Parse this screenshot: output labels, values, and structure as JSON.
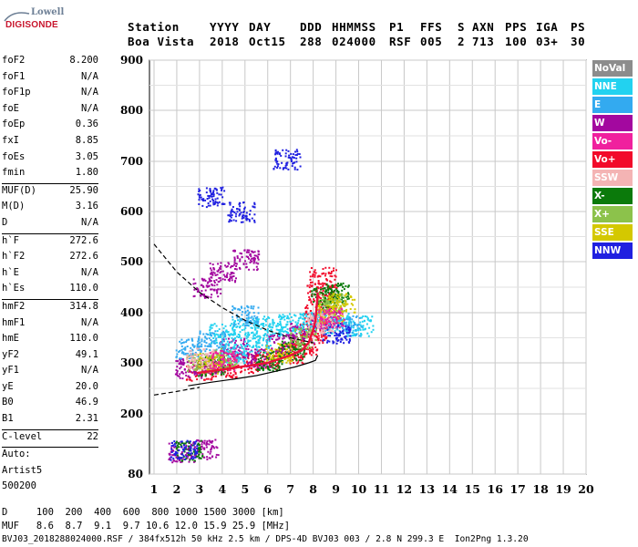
{
  "logo": {
    "line1": "Lowell",
    "line2": "DIGISONDE"
  },
  "header": {
    "columns": [
      "Station",
      "YYYY",
      "DAY",
      "DDD",
      "HHMMSS",
      "P1",
      "FFS",
      "S",
      "AXN",
      "PPS",
      "IGA",
      "PS"
    ],
    "values": [
      "Boa Vista",
      "2018",
      "Oct15",
      "288",
      "024000",
      "RSF",
      "005",
      "2",
      "713",
      "100",
      "03+",
      "30"
    ]
  },
  "params": {
    "group1": [
      {
        "k": "foF2",
        "v": "8.200"
      },
      {
        "k": "foF1",
        "v": "N/A"
      },
      {
        "k": "foF1p",
        "v": "N/A"
      },
      {
        "k": "foE",
        "v": "N/A"
      },
      {
        "k": "foEp",
        "v": "0.36"
      },
      {
        "k": "fxI",
        "v": "8.85"
      },
      {
        "k": "foEs",
        "v": "3.05"
      },
      {
        "k": "fmin",
        "v": "1.80"
      }
    ],
    "group2": [
      {
        "k": "MUF(D)",
        "v": "25.90"
      },
      {
        "k": "M(D)",
        "v": "3.16"
      },
      {
        "k": "D",
        "v": "N/A"
      }
    ],
    "group3": [
      {
        "k": "h`F",
        "v": "272.6"
      },
      {
        "k": "h`F2",
        "v": "272.6"
      },
      {
        "k": "h`E",
        "v": "N/A"
      },
      {
        "k": "h`Es",
        "v": "110.0"
      }
    ],
    "group4": [
      {
        "k": "hmF2",
        "v": "314.8"
      },
      {
        "k": "hmF1",
        "v": "N/A"
      },
      {
        "k": "hmE",
        "v": "110.0"
      },
      {
        "k": "yF2",
        "v": "49.1"
      },
      {
        "k": "yF1",
        "v": "N/A"
      },
      {
        "k": "yE",
        "v": "20.0"
      },
      {
        "k": "B0",
        "v": "46.9"
      },
      {
        "k": "B1",
        "v": "2.31"
      }
    ],
    "group5": [
      {
        "k": "C-level",
        "v": "22"
      }
    ],
    "auto": [
      "Auto:",
      "Artist5",
      "500200"
    ]
  },
  "legend": [
    {
      "label": "NoVal",
      "color": "#8c8c8c"
    },
    {
      "label": "NNE",
      "color": "#22d2f0"
    },
    {
      "label": "E",
      "color": "#33aaf0"
    },
    {
      "label": "W",
      "color": "#a3089f"
    },
    {
      "label": "Vo-",
      "color": "#f0209e"
    },
    {
      "label": "Vo+",
      "color": "#f20a2a"
    },
    {
      "label": "SSW",
      "color": "#f4b4b4"
    },
    {
      "label": "X-",
      "color": "#0b7a0b"
    },
    {
      "label": "X+",
      "color": "#8cc24b"
    },
    {
      "label": "SSE",
      "color": "#d4c800"
    },
    {
      "label": "NNW",
      "color": "#2020e0"
    }
  ],
  "footer": {
    "line1": "D     100  200  400  600  800 1000 1500 3000 [km]",
    "line2": "MUF   8.6  8.7  9.1  9.7 10.6 12.0 15.9 25.9 [MHz]",
    "line3": "BVJ03_2018288024000.RSF / 384fx512h 50 kHz 2.5 km / DPS-4D BVJ03 003 / 2.8 N 299.3 E  Ion2Png 1.3.20"
  },
  "chart_data": {
    "type": "scatter",
    "xlim": [
      1,
      20
    ],
    "ylim": [
      80,
      900
    ],
    "x_ticks": [
      1,
      2,
      3,
      4,
      5,
      6,
      7,
      8,
      9,
      10,
      11,
      12,
      13,
      14,
      15,
      16,
      17,
      18,
      19,
      20
    ],
    "y_ticks": [
      80,
      200,
      300,
      400,
      500,
      600,
      700,
      800,
      900
    ],
    "grid": true,
    "series": [
      {
        "name": "Vo+",
        "color": "#f20a2a",
        "points": [
          [
            3.0,
            285
          ],
          [
            4.0,
            292
          ],
          [
            5.0,
            300
          ],
          [
            6.0,
            308
          ],
          [
            7.0,
            320
          ],
          [
            7.6,
            335
          ],
          [
            8.0,
            360
          ],
          [
            8.2,
            400
          ],
          [
            8.3,
            440
          ],
          [
            8.4,
            470
          ]
        ]
      },
      {
        "name": "W",
        "color": "#a3089f",
        "points": [
          [
            2.5,
            290
          ],
          [
            3.5,
            300
          ],
          [
            4.5,
            330
          ],
          [
            5.5,
            310
          ],
          [
            6.5,
            340
          ],
          [
            7.5,
            360
          ],
          [
            8.5,
            390
          ],
          [
            3.3,
            450
          ],
          [
            4.0,
            480
          ],
          [
            5.0,
            505
          ],
          [
            2.2,
            125
          ],
          [
            3.2,
            130
          ]
        ]
      },
      {
        "name": "NNE",
        "color": "#22d2f0",
        "points": [
          [
            4.0,
            360
          ],
          [
            5.0,
            370
          ],
          [
            6.0,
            375
          ],
          [
            7.0,
            380
          ],
          [
            8.0,
            385
          ],
          [
            9.0,
            380
          ],
          [
            10.0,
            375
          ],
          [
            4.5,
            320
          ],
          [
            5.5,
            340
          ]
        ]
      },
      {
        "name": "E",
        "color": "#33aaf0",
        "points": [
          [
            2.5,
            330
          ],
          [
            3.5,
            345
          ],
          [
            5.0,
            395
          ],
          [
            9.5,
            375
          ]
        ]
      },
      {
        "name": "X-",
        "color": "#0b7a0b",
        "points": [
          [
            2.5,
            128
          ],
          [
            3.5,
            295
          ],
          [
            6.0,
            305
          ],
          [
            7.0,
            325
          ],
          [
            8.5,
            430
          ],
          [
            9.0,
            440
          ]
        ]
      },
      {
        "name": "X+",
        "color": "#8cc24b",
        "points": [
          [
            3.0,
            300
          ],
          [
            4.0,
            310
          ],
          [
            7.5,
            350
          ],
          [
            8.8,
            420
          ]
        ]
      },
      {
        "name": "SSE",
        "color": "#d4c800",
        "points": [
          [
            3.5,
            300
          ],
          [
            6.5,
            320
          ],
          [
            8.7,
            400
          ],
          [
            9.2,
            420
          ]
        ]
      },
      {
        "name": "NNW",
        "color": "#2020e0",
        "points": [
          [
            2.3,
            128
          ],
          [
            3.5,
            630
          ],
          [
            4.8,
            600
          ],
          [
            6.8,
            705
          ],
          [
            9.0,
            360
          ]
        ]
      },
      {
        "name": "SSW",
        "color": "#f4b4b4",
        "points": [
          [
            3.0,
            310
          ],
          [
            8.3,
            380
          ]
        ]
      },
      {
        "name": "Vo-",
        "color": "#f0209e",
        "points": [
          [
            4.0,
            305
          ],
          [
            8.8,
            390
          ]
        ]
      }
    ],
    "curves": {
      "virtual_height_trace": [
        [
          2.9,
          280
        ],
        [
          4.5,
          290
        ],
        [
          6.0,
          300
        ],
        [
          7.0,
          315
        ],
        [
          7.5,
          325
        ],
        [
          7.8,
          340
        ],
        [
          8.0,
          365
        ],
        [
          8.1,
          385
        ],
        [
          8.15,
          410
        ],
        [
          8.2,
          440
        ]
      ],
      "profile": [
        [
          2.5,
          255
        ],
        [
          3.5,
          262
        ],
        [
          4.5,
          268
        ],
        [
          5.5,
          275
        ],
        [
          6.5,
          285
        ],
        [
          7.2,
          292
        ],
        [
          7.8,
          300
        ],
        [
          8.1,
          305
        ],
        [
          8.2,
          315
        ]
      ],
      "dashed_upper": [
        [
          1.0,
          535
        ],
        [
          2.0,
          480
        ],
        [
          3.0,
          440
        ],
        [
          4.0,
          410
        ],
        [
          5.0,
          385
        ],
        [
          6.0,
          365
        ],
        [
          7.0,
          350
        ],
        [
          8.0,
          340
        ]
      ],
      "dashed_lower": [
        [
          1.0,
          237
        ],
        [
          2.0,
          244
        ],
        [
          2.5,
          248
        ],
        [
          3.0,
          252
        ]
      ]
    }
  }
}
